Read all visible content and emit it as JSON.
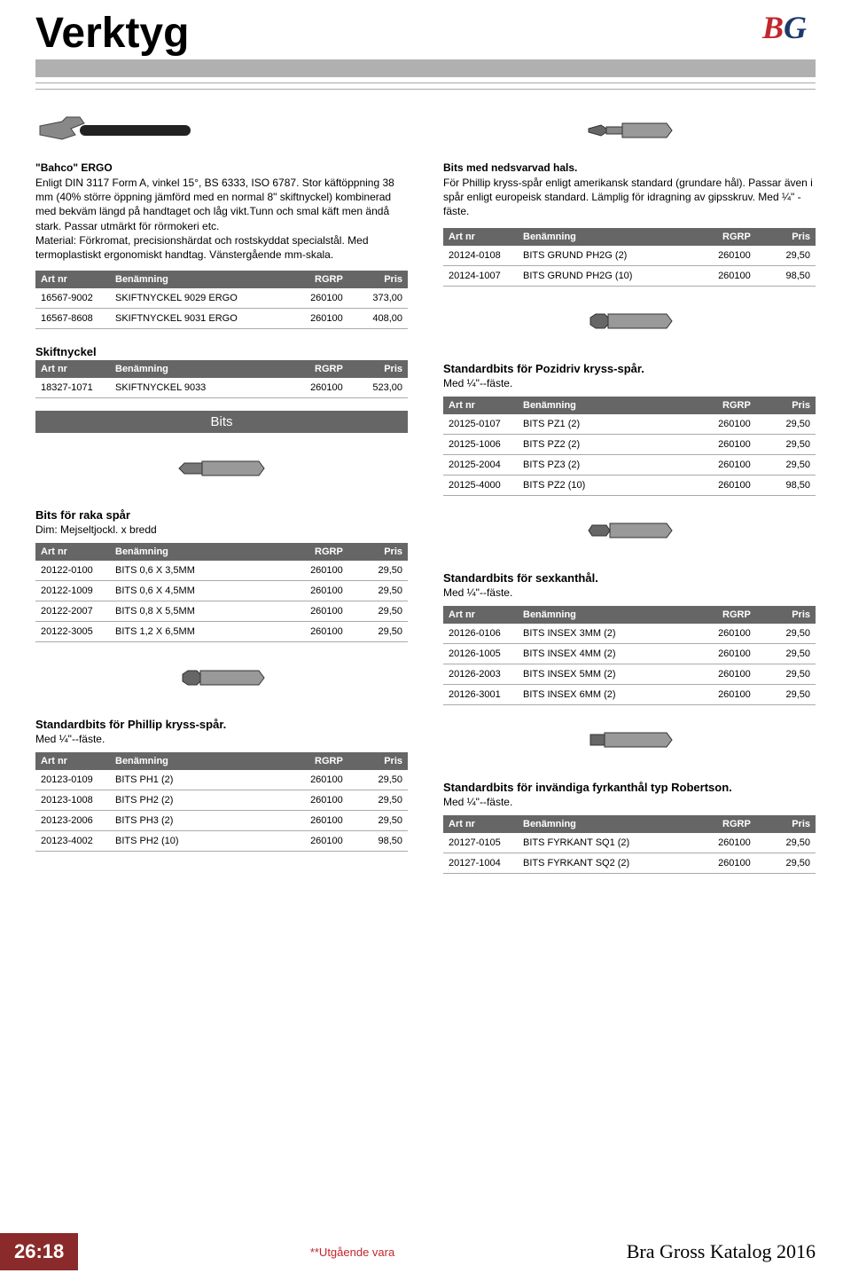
{
  "page": {
    "title": "Verktyg",
    "logo_b": "B",
    "logo_g": "G",
    "page_number": "26:18",
    "footer_center": "**Utgående vara",
    "footer_right": "Bra Gross Katalog 2016"
  },
  "headers": {
    "art": "Art nr",
    "ben": "Benämning",
    "rgrp": "RGRP",
    "pris": "Pris"
  },
  "colors": {
    "header_bg": "#666666",
    "header_fg": "#ffffff",
    "rule": "#aaaaaa",
    "gray_bar": "#b0b0b0",
    "accent_red": "#c1272d",
    "badge_bg": "#8a2a2a",
    "logo_blue": "#1b3a6b"
  },
  "left": {
    "bahco": {
      "title": "\"Bahco\" ERGO",
      "desc": "Enligt DIN 3117 Form A, vinkel 15°, BS 6333, ISO 6787. Stor käftöppning 38 mm (40% större öppning jämförd med en normal 8\" skiftnyckel) kombinerad med bekväm längd på handtaget och låg vikt.Tunn och smal käft men ändå stark. Passar utmärkt för rörmokeri etc.\nMaterial: Förkromat, precisionshärdat och rostskyddat specialstål. Med termoplastiskt ergonomiskt handtag. Vänstergående mm-skala.",
      "rows": [
        [
          "16567-9002",
          "SKIFTNYCKEL 9029 ERGO",
          "260100",
          "373,00"
        ],
        [
          "16567-8608",
          "SKIFTNYCKEL 9031 ERGO",
          "260100",
          "408,00"
        ]
      ]
    },
    "skift": {
      "heading": "Skiftnyckel",
      "rows": [
        [
          "18327-1071",
          "SKIFTNYCKEL 9033",
          "260100",
          "523,00"
        ]
      ]
    },
    "bits_category": "Bits",
    "raka": {
      "heading": "Bits för raka spår",
      "sub": "Dim: Mejseltjockl. x bredd",
      "rows": [
        [
          "20122-0100",
          "BITS 0,6 X 3,5MM",
          "260100",
          "29,50"
        ],
        [
          "20122-1009",
          "BITS 0,6 X 4,5MM",
          "260100",
          "29,50"
        ],
        [
          "20122-2007",
          "BITS 0,8 X 5,5MM",
          "260100",
          "29,50"
        ],
        [
          "20122-3005",
          "BITS 1,2 X 6,5MM",
          "260100",
          "29,50"
        ]
      ]
    },
    "phillip": {
      "heading": "Standardbits för Phillip kryss-spår.",
      "sub": "Med ¼\"--fäste.",
      "rows": [
        [
          "20123-0109",
          "BITS PH1 (2)",
          "260100",
          "29,50"
        ],
        [
          "20123-1008",
          "BITS PH2 (2)",
          "260100",
          "29,50"
        ],
        [
          "20123-2006",
          "BITS PH3 (2)",
          "260100",
          "29,50"
        ],
        [
          "20123-4002",
          "BITS PH2 (10)",
          "260100",
          "98,50"
        ]
      ]
    }
  },
  "right": {
    "neds": {
      "title": "Bits med nedsvarvad hals.",
      "desc": "För Phillip kryss-spår enligt amerikansk standard (grundare hål). Passar även i spår enligt europeisk standard. Lämplig för idragning av gipsskruv. Med ¼\" -fäste.",
      "rows": [
        [
          "20124-0108",
          "BITS GRUND PH2G (2)",
          "260100",
          "29,50"
        ],
        [
          "20124-1007",
          "BITS GRUND PH2G (10)",
          "260100",
          "98,50"
        ]
      ]
    },
    "pozi": {
      "heading": "Standardbits för Pozidriv kryss-spår.",
      "sub": "Med ¼\"--fäste.",
      "rows": [
        [
          "20125-0107",
          "BITS PZ1 (2)",
          "260100",
          "29,50"
        ],
        [
          "20125-1006",
          "BITS PZ2 (2)",
          "260100",
          "29,50"
        ],
        [
          "20125-2004",
          "BITS PZ3 (2)",
          "260100",
          "29,50"
        ],
        [
          "20125-4000",
          "BITS PZ2 (10)",
          "260100",
          "98,50"
        ]
      ]
    },
    "sex": {
      "heading": "Standardbits för sexkanthål.",
      "sub": "Med ¼\"--fäste.",
      "rows": [
        [
          "20126-0106",
          "BITS INSEX 3MM (2)",
          "260100",
          "29,50"
        ],
        [
          "20126-1005",
          "BITS INSEX 4MM (2)",
          "260100",
          "29,50"
        ],
        [
          "20126-2003",
          "BITS INSEX 5MM (2)",
          "260100",
          "29,50"
        ],
        [
          "20126-3001",
          "BITS INSEX 6MM (2)",
          "260100",
          "29,50"
        ]
      ]
    },
    "fyrk": {
      "heading": "Standardbits för invändiga fyrkanthål typ Robertson.",
      "sub": "Med ¼\"--fäste.",
      "rows": [
        [
          "20127-0105",
          "BITS FYRKANT SQ1 (2)",
          "260100",
          "29,50"
        ],
        [
          "20127-1004",
          "BITS FYRKANT SQ2 (2)",
          "260100",
          "29,50"
        ]
      ]
    }
  }
}
